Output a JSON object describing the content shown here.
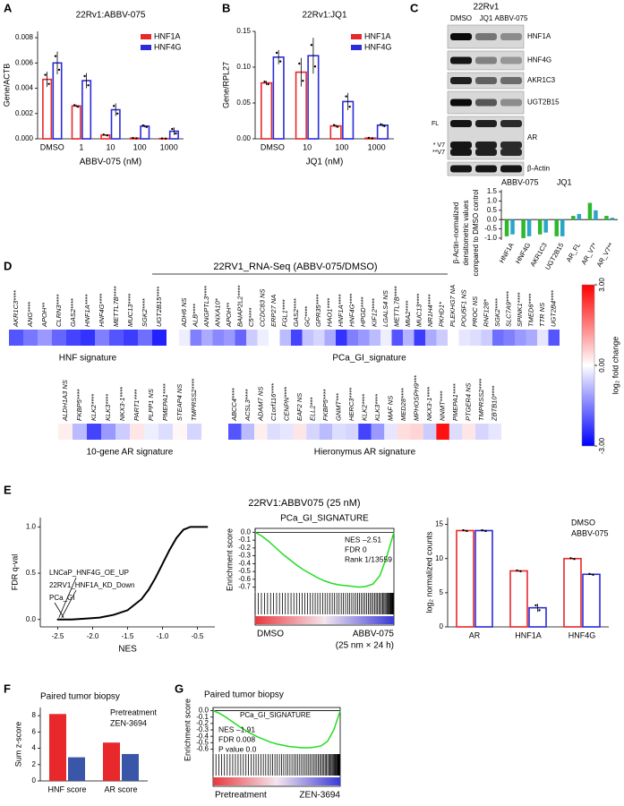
{
  "panel_labels": [
    "A",
    "B",
    "C",
    "D",
    "E",
    "F",
    "G"
  ],
  "e_title": "22RV1:ABBV075 (25 nM)",
  "blot": {
    "cell_line": "22Rv1",
    "lanes": [
      "DMSO",
      "JQ1",
      "ABBV-075"
    ],
    "proteins": [
      "HNF1A",
      "HNF4G",
      "AKR1C3",
      "UGT2B15",
      "AR",
      "β-Actin"
    ],
    "ar_marks": [
      "FL",
      "* V7",
      "**V7"
    ]
  },
  "chart_data": [
    {
      "type": "bar",
      "title": "22Rv1:ABBV-075",
      "ylabel": "Gene/ACTB",
      "xlabel": "ABBV-075 (nM)",
      "categories": [
        "DMSO",
        "1",
        "10",
        "100",
        "1000"
      ],
      "bar_style": "outline",
      "legend": "upper right",
      "legend_swatch": true,
      "series": [
        {
          "name": "HNF1A",
          "color": "#e8282b",
          "values": [
            0.0047,
            0.0026,
            0.0003,
            5e-05,
            2e-05
          ],
          "errors": [
            0.0006,
            0.0001,
            5e-05,
            2e-05,
            1e-05
          ]
        },
        {
          "name": "HNF4G",
          "color": "#2b2bd9",
          "values": [
            0.006,
            0.0046,
            0.0023,
            0.001,
            0.0006
          ],
          "errors": [
            0.0009,
            0.0006,
            0.0005,
            0.0001,
            0.0003
          ]
        }
      ],
      "ylim": [
        0,
        0.0085
      ],
      "yticks": [
        {
          "value": 0,
          "label": "0.000"
        },
        {
          "value": 0.002,
          "label": "0.002"
        },
        {
          "value": 0.004,
          "label": "0.004"
        },
        {
          "value": 0.006,
          "label": "0.006"
        },
        {
          "value": 0.008,
          "label": "0.008"
        }
      ]
    },
    {
      "type": "bar",
      "title": "22Rv1:JQ1",
      "ylabel": "Gene/RPL27",
      "xlabel": "JQ1 (nM)",
      "categories": [
        "DMSO",
        "10",
        "100",
        "1000"
      ],
      "bar_style": "outline",
      "legend": "upper right",
      "legend_swatch": true,
      "series": [
        {
          "name": "HNF1A",
          "color": "#e8282b",
          "values": [
            0.078,
            0.093,
            0.018,
            0.001
          ],
          "errors": [
            0.003,
            0.02,
            0.002,
            0.0005
          ]
        },
        {
          "name": "HNF4G",
          "color": "#2b2bd9",
          "values": [
            0.114,
            0.116,
            0.052,
            0.019
          ],
          "errors": [
            0.01,
            0.025,
            0.012,
            0.002
          ]
        }
      ],
      "ylim": [
        0,
        0.15
      ],
      "yticks": [
        {
          "value": 0,
          "label": "0.00"
        },
        0.05,
        {
          "value": 0.1,
          "label": "0.10"
        },
        0.15
      ]
    },
    {
      "type": "bar",
      "ylabel_lines": [
        "β-Actin–normalized",
        "densitometric values",
        "compared to DMSO control"
      ],
      "categories": [
        "HNF1A",
        "HNF4G",
        "AKR1C3",
        "UGT2B15",
        "AR_FL",
        "AR_V7*",
        "AR_V7**"
      ],
      "bar_style": "filled",
      "legend": "top",
      "legend_swatch": false,
      "series": [
        {
          "name": "ABBV-075",
          "color": "#2db82d",
          "values": [
            -0.9,
            -1.0,
            -0.8,
            -0.9,
            0.2,
            0.9,
            0.2
          ]
        },
        {
          "name": "JQ1",
          "color": "#2aa6c8",
          "values": [
            -0.8,
            -0.9,
            -0.7,
            -0.9,
            0.3,
            0.5,
            0.1
          ]
        }
      ],
      "ylim": [
        -1.1,
        1.6
      ],
      "yticks": [
        {
          "value": -1,
          "label": "-1.0"
        },
        -0.5,
        {
          "value": 0,
          "label": "0.0"
        },
        0.5,
        {
          "value": 1,
          "label": "1.0"
        },
        1.5
      ]
    },
    {
      "type": "heatmap",
      "title": "22RV1_RNA-Seq (ABBV-075/DMSO)",
      "colors": [
        "#0000ff",
        "#ffffff",
        "#ff0000"
      ],
      "clim": [
        -3,
        3
      ],
      "cticks": [
        {
          "value": 3,
          "label": "3.00"
        },
        {
          "value": 0,
          "label": "0.00"
        },
        {
          "value": -3,
          "label": "-3.00"
        }
      ],
      "colorbar_label": "log₂ fold change",
      "groups": [
        {
          "name": "HNF signature",
          "genes": [
            "AKR1C3****",
            "ANG****",
            "APOH**",
            "CLRN3****",
            "GAS2****",
            "HNF1A****",
            "HNF4G****",
            "METTL7B****",
            "MUC13****",
            "SGK2****",
            "UGT2B15****"
          ],
          "values": [
            -2.0,
            -1.6,
            -1.2,
            -1.8,
            -2.2,
            -2.4,
            -1.5,
            -2.0,
            -2.3,
            -1.7,
            -2.6
          ]
        },
        {
          "name": "PCa_GI_signature",
          "genes": [
            "ADH6 NS",
            "ALB****",
            "ANGPTL3****",
            "ANXA10*",
            "APOH**",
            "BAIAP2L2****",
            "C5****",
            "CCDC83 NS",
            "ERP27 NA",
            "FGL1****",
            "GAS2****",
            "GC****",
            "GPR35****",
            "HAO1****",
            "HNF1A****",
            "HNF4G****",
            "HPGD****",
            "KIF12****",
            "LGALS4 NS",
            "METTL7B****",
            "MIA2****",
            "MUC13****",
            "NR1H4****",
            "PKHD1*",
            "PLEKHG7 NA",
            "POU5F1 NS",
            "PROC NS",
            "RNF128*",
            "SGK2****",
            "SLC7A9****",
            "SPINK1****",
            "TMED6****",
            "TTR NS",
            "UGT2B4****"
          ],
          "values": [
            -0.2,
            -1.5,
            -1.0,
            -1.4,
            -1.2,
            -1.8,
            -0.6,
            -0.2,
            0.0,
            -0.8,
            -2.2,
            -0.7,
            -0.5,
            -1.0,
            -2.4,
            -1.5,
            -1.2,
            -0.8,
            -0.2,
            -2.0,
            -0.9,
            -2.3,
            -1.0,
            -0.6,
            0.0,
            -0.3,
            -0.4,
            -0.6,
            -1.7,
            -1.5,
            -1.2,
            -1.0,
            -0.3,
            -2.0
          ]
        },
        {
          "name": "10-gene AR signature",
          "genes": [
            "ALDH1A3 NS",
            "FKBP5****",
            "KLK2****",
            "KLK3****",
            "NKX3-1****",
            "PART1****",
            "PLPP1 NS",
            "PMEPA1****",
            "STEAP4 NS",
            "TMPRSS2****"
          ],
          "values": [
            0.2,
            -0.8,
            -2.2,
            -1.2,
            -0.6,
            0.3,
            -0.2,
            -0.4,
            0.1,
            -0.5
          ]
        },
        {
          "name": "Hieronymus AR signature",
          "genes": [
            "ABCC4****",
            "ACSL3****",
            "ADAM7 NS",
            "C1orf116****",
            "CENPN****",
            "EAF2 NS",
            "ELL2***",
            "FKBP5****",
            "GNMT***",
            "HERC3****",
            "KLK2****",
            "KLK3****",
            "MAF NS",
            "MED28****",
            "MPHOSPH9***",
            "NKX3-1****",
            "NNMT****",
            "PMEPA1****",
            "PTGER4 NS",
            "TMPRSS2****",
            "ZBTB10****"
          ],
          "values": [
            -2.0,
            -0.8,
            0.2,
            -0.4,
            -0.3,
            0.3,
            -0.5,
            -0.8,
            -0.4,
            -0.5,
            -2.2,
            -1.2,
            -0.3,
            0.4,
            0.5,
            -0.6,
            2.8,
            -0.4,
            0.3,
            -0.5,
            -0.3
          ]
        }
      ]
    },
    {
      "type": "line",
      "ylabel": "FDR q-val",
      "xlabel": "NES",
      "color": "#000000",
      "x": [
        -2.51,
        -2.47,
        -2.44,
        -2.3,
        -2.1,
        -1.9,
        -1.7,
        -1.5,
        -1.3,
        -1.2,
        -1.1,
        -1.0,
        -0.9,
        -0.8,
        -0.7,
        -0.6,
        -0.5,
        -0.4,
        -0.35
      ],
      "values": [
        0,
        0,
        0,
        0,
        0.01,
        0.02,
        0.05,
        0.1,
        0.22,
        0.32,
        0.45,
        0.6,
        0.75,
        0.88,
        0.97,
        1.0,
        1.0,
        1.0,
        1.0
      ],
      "annotations": [
        "LNCaP_HNF4G_OE_UP",
        "22RV1_HNF1A_KD_Down",
        "PCa_GI"
      ],
      "xlim": [
        -2.75,
        -0.25
      ],
      "xticks": [
        -2.5,
        {
          "value": -2,
          "label": "-2.0"
        },
        -1.5,
        {
          "value": -1,
          "label": "-1.0"
        },
        -0.5
      ],
      "ylim": [
        -0.08,
        1.1
      ],
      "yticks": [
        {
          "value": 0,
          "label": "0.0"
        },
        0.5,
        {
          "value": 1,
          "label": "1.0"
        }
      ]
    },
    {
      "type": "enrichment",
      "title": "PCa_GI_SIGNATURE",
      "ylabel": "Enrichment score",
      "color": "#22dd22",
      "values": [
        0,
        -0.05,
        -0.12,
        -0.2,
        -0.28,
        -0.35,
        -0.42,
        -0.48,
        -0.53,
        -0.58,
        -0.62,
        -0.65,
        -0.67,
        -0.68,
        -0.69,
        -0.7,
        -0.69,
        -0.66,
        -0.55,
        -0.3,
        0.0
      ],
      "annotations": [
        "NES –2.51",
        "FDR 0",
        "Rank 1/13559"
      ],
      "left_label": "DMSO",
      "right_label": "ABBV-075",
      "right_sublabel": "(25 nm × 24 h)",
      "ylim": [
        -0.75,
        0.05
      ],
      "yticks": [
        {
          "value": 0,
          "label": "0.0"
        },
        -0.1,
        -0.2,
        -0.3,
        -0.4,
        -0.5,
        -0.6,
        -0.7
      ]
    },
    {
      "type": "bar",
      "ylabel": "log₂ normalized counts",
      "categories": [
        "AR",
        "HNF1A",
        "HNF4G"
      ],
      "bar_style": "outline",
      "legend": "upper right",
      "legend_swatch": false,
      "series": [
        {
          "name": "DMSO",
          "color": "#e8282b",
          "values": [
            14.1,
            8.2,
            10.0
          ],
          "errors": [
            0.1,
            0.1,
            0.1
          ]
        },
        {
          "name": "ABBV-075",
          "color": "#2b2bd9",
          "values": [
            14.1,
            2.8,
            7.7
          ],
          "errors": [
            0.1,
            0.6,
            0.1
          ]
        }
      ],
      "ylim": [
        0,
        16
      ],
      "yticks": [
        0,
        5,
        10,
        15
      ]
    },
    {
      "type": "bar",
      "title": "Paired tumor biopsy",
      "ylabel": "Sum z-score",
      "categories": [
        "HNF score",
        "AR score"
      ],
      "bar_style": "filled",
      "legend": "upper right",
      "legend_swatch": false,
      "series": [
        {
          "name": "Pretreatment",
          "color": "#e8282b",
          "values": [
            8.2,
            4.7
          ]
        },
        {
          "name": "ZEN-3694",
          "color": "#3a56a8",
          "values": [
            2.9,
            3.3
          ]
        }
      ],
      "ylim": [
        0,
        9
      ],
      "yticks": [
        0,
        2,
        4,
        6,
        8
      ]
    },
    {
      "type": "enrichment",
      "title": "Paired tumor biopsy",
      "signature": "PCa_GI_SIGNATURE",
      "ylabel": "Enrichment score",
      "color": "#22dd22",
      "values": [
        0,
        -0.04,
        -0.1,
        -0.17,
        -0.24,
        -0.3,
        -0.36,
        -0.41,
        -0.45,
        -0.49,
        -0.52,
        -0.54,
        -0.56,
        -0.57,
        -0.58,
        -0.58,
        -0.57,
        -0.55,
        -0.48,
        -0.3,
        0.0
      ],
      "annotations": [
        "NES –1.91",
        "FDR  0.008",
        "P value 0.0"
      ],
      "left_label": "Pretreatment",
      "right_label": "ZEN-3694",
      "ylim": [
        -0.65,
        0.05
      ],
      "yticks": [
        {
          "value": 0,
          "label": "0.0"
        },
        -0.1,
        -0.2,
        -0.3,
        -0.4,
        -0.5,
        -0.6
      ]
    }
  ]
}
